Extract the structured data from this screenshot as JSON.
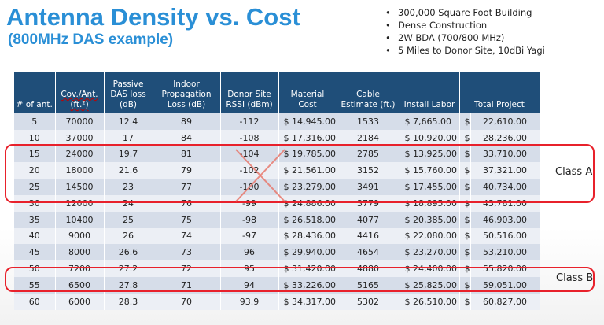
{
  "title": "Antenna Density vs. Cost",
  "subtitle": "(800MHz DAS example)",
  "bullets": [
    "300,000 Square Foot Building",
    "Dense Construction",
    "2W BDA (700/800 MHz)",
    "5 Miles to Donor Site, 10dBi Yagi"
  ],
  "table": {
    "headers": [
      "# of ant.",
      "Cov./Ant. (ft.²)",
      "Passive DAS loss (dB)",
      "Indoor Propagation Loss (dB)",
      "Donor Site RSSI (dBm)",
      "Material Cost",
      "Cable Estimate (ft.)",
      "Install Labor",
      "Total Project"
    ],
    "rows": [
      [
        "5",
        "70000",
        "12.4",
        "89",
        "-112",
        "$ 14,945.00",
        "1533",
        "$   7,665.00",
        "$",
        "22,610.00"
      ],
      [
        "10",
        "37000",
        "17",
        "84",
        "-108",
        "$ 17,316.00",
        "2184",
        "$ 10,920.00",
        "$",
        "28,236.00"
      ],
      [
        "15",
        "24000",
        "19.7",
        "81",
        "-104",
        "$ 19,785.00",
        "2785",
        "$ 13,925.00",
        "$",
        "33,710.00"
      ],
      [
        "20",
        "18000",
        "21.6",
        "79",
        "-102",
        "$ 21,561.00",
        "3152",
        "$ 15,760.00",
        "$",
        "37,321.00"
      ],
      [
        "25",
        "14500",
        "23",
        "77",
        "-100",
        "$ 23,279.00",
        "3491",
        "$ 17,455.00",
        "$",
        "40,734.00"
      ],
      [
        "30",
        "12000",
        "24",
        "76",
        "-99",
        "$ 24,886.00",
        "3779",
        "$ 18,895.00",
        "$",
        "43,781.00"
      ],
      [
        "35",
        "10400",
        "25",
        "75",
        "-98",
        "$ 26,518.00",
        "4077",
        "$ 20,385.00",
        "$",
        "46,903.00"
      ],
      [
        "40",
        "9000",
        "26",
        "74",
        "-97",
        "$ 28,436.00",
        "4416",
        "$ 22,080.00",
        "$",
        "50,516.00"
      ],
      [
        "45",
        "8000",
        "26.6",
        "73",
        "96",
        "$ 29,940.00",
        "4654",
        "$ 23,270.00",
        "$",
        "53,210.00"
      ],
      [
        "50",
        "7200",
        "27.2",
        "72",
        "95",
        "$ 31,420.00",
        "4880",
        "$ 24,400.00",
        "$",
        "55,820.00"
      ],
      [
        "55",
        "6500",
        "27.8",
        "71",
        "94",
        "$ 33,226.00",
        "5165",
        "$ 25,825.00",
        "$",
        "59,051.00"
      ],
      [
        "60",
        "6000",
        "28.3",
        "70",
        "93.9",
        "$ 34,317.00",
        "5302",
        "$ 26,510.00",
        "$",
        "60,827.00"
      ]
    ]
  },
  "annotations": {
    "class_a": "Class A",
    "class_b": "Class B",
    "colors": {
      "highlight": "#e8212b",
      "header": "#1f4e79",
      "title": "#2a8fd6"
    }
  }
}
